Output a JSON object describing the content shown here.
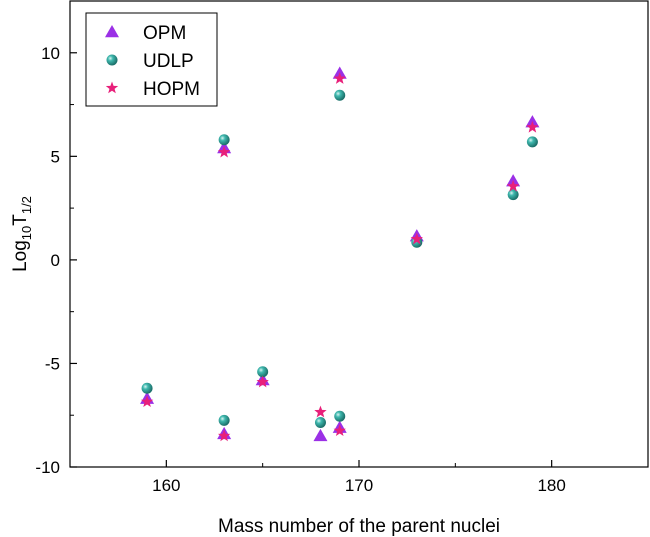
{
  "chart_data": {
    "type": "scatter",
    "title": "",
    "xlabel": "Mass number of the parent nuclei",
    "ylabel": "Log",
    "ylabel_sub": "10",
    "ylabel_rest": "T",
    "ylabel_sub2": "1/2",
    "xlim": [
      155,
      185
    ],
    "ylim": [
      -10,
      12.5
    ],
    "x_ticks": [
      160,
      170,
      180
    ],
    "x_tick_labels": [
      "160",
      "170",
      "180"
    ],
    "y_ticks": [
      -10,
      -5,
      0,
      5,
      10
    ],
    "y_tick_labels": [
      "-10",
      "-5",
      "0",
      "5",
      "10"
    ],
    "grid": false,
    "legend_position": "top-left",
    "series": [
      {
        "name": "OPM",
        "marker": "triangle",
        "color": "#9b30e6",
        "points": [
          [
            159,
            -6.7
          ],
          [
            163,
            5.4
          ],
          [
            163,
            -8.4
          ],
          [
            165,
            -5.8
          ],
          [
            168,
            -8.5
          ],
          [
            169,
            9.0
          ],
          [
            169,
            -8.1
          ],
          [
            173,
            1.15
          ],
          [
            178,
            3.8
          ],
          [
            179,
            6.65
          ]
        ]
      },
      {
        "name": "UDLP",
        "marker": "sphere",
        "color": "#2aa39b",
        "points": [
          [
            159,
            -6.2
          ],
          [
            163,
            5.8
          ],
          [
            163,
            -7.75
          ],
          [
            165,
            -5.4
          ],
          [
            168,
            -7.85
          ],
          [
            169,
            7.95
          ],
          [
            169,
            -7.55
          ],
          [
            173,
            0.85
          ],
          [
            178,
            3.15
          ],
          [
            179,
            5.7
          ]
        ]
      },
      {
        "name": "HOPM",
        "marker": "star",
        "color": "#e8207a",
        "points": [
          [
            159,
            -6.85
          ],
          [
            163,
            5.2
          ],
          [
            163,
            -8.5
          ],
          [
            165,
            -5.9
          ],
          [
            168,
            -7.35
          ],
          [
            169,
            8.75
          ],
          [
            169,
            -8.25
          ],
          [
            173,
            1.0
          ],
          [
            178,
            3.55
          ],
          [
            179,
            6.4
          ]
        ]
      }
    ]
  }
}
